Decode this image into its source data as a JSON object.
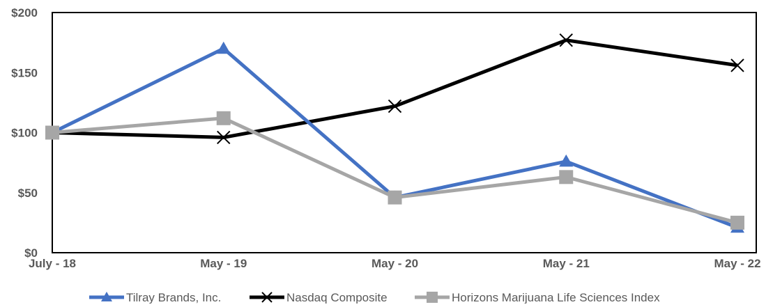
{
  "chart_data": {
    "type": "line",
    "title": "",
    "xlabel": "",
    "ylabel": "",
    "categories": [
      "July - 18",
      "May - 19",
      "May - 20",
      "May - 21",
      "May - 22"
    ],
    "y_tick_labels": [
      "$0",
      "$50",
      "$100",
      "$150",
      "$200"
    ],
    "y_ticks": [
      0,
      50,
      100,
      150,
      200
    ],
    "ylim": [
      0,
      200
    ],
    "grid": false,
    "legend_position": "bottom",
    "series": [
      {
        "name": "Tilray Brands, Inc.",
        "values": [
          100,
          170,
          46,
          76,
          21
        ],
        "color": "#4472C4",
        "marker": "triangle"
      },
      {
        "name": "Nasdaq Composite",
        "values": [
          100,
          96,
          122,
          177,
          156
        ],
        "color": "#000000",
        "marker": "x"
      },
      {
        "name": "Horizons Marijuana Life Sciences Index",
        "values": [
          100,
          112,
          46,
          63,
          25
        ],
        "color": "#A6A6A6",
        "marker": "square"
      }
    ]
  }
}
